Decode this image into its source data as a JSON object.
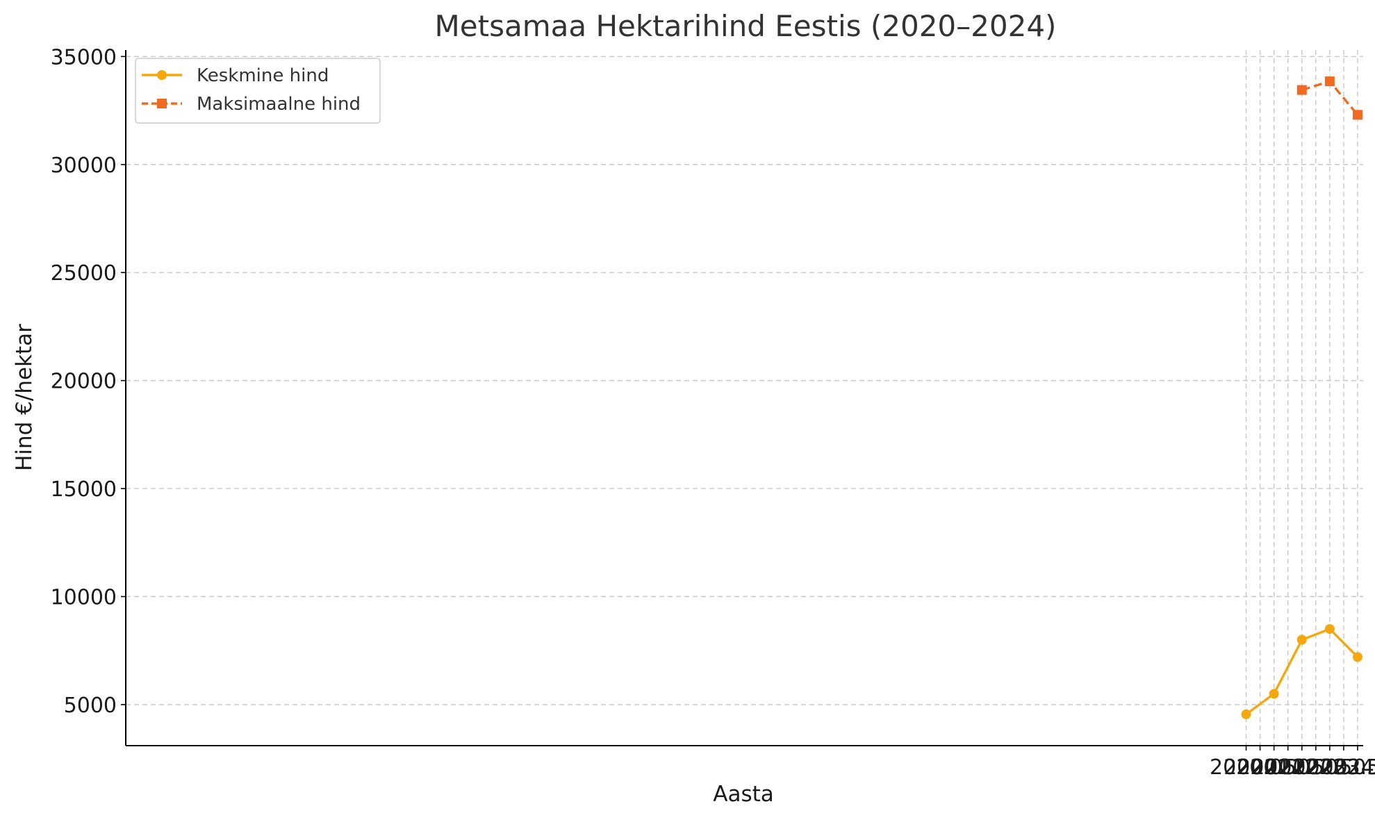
{
  "chart_data": {
    "type": "line",
    "title": "Metsamaa Hektarihind Eestis (2020–2024)",
    "xlabel": "Aasta",
    "ylabel": "Hind €/hektar",
    "xlim": [
      1979.8,
      2024.2
    ],
    "ylim": [
      3100,
      35300
    ],
    "x_ticks": [
      2020.0,
      2020.5,
      2021.0,
      2021.5,
      2022.0,
      2022.5,
      2023.0,
      2023.5,
      2024.0
    ],
    "x_tick_labels": [
      "2020.0",
      "2020.5",
      "2021.0",
      "2021.5",
      "2022.0",
      "2022.5",
      "2023.0",
      "2023.5",
      "2024.0"
    ],
    "y_ticks": [
      5000,
      10000,
      15000,
      20000,
      25000,
      30000,
      35000
    ],
    "y_tick_labels": [
      "5000",
      "10000",
      "15000",
      "20000",
      "25000",
      "30000",
      "35000"
    ],
    "grid": true,
    "legend_position": "top-left",
    "series": [
      {
        "name": "Keskmine hind",
        "color": "#f5a80e",
        "line_style": "solid",
        "marker": "circle",
        "x": [
          2020,
          2021,
          2022,
          2023,
          2024
        ],
        "values": [
          4550,
          5500,
          8000,
          8500,
          7200
        ]
      },
      {
        "name": "Maksimaalne hind",
        "color": "#f26a22",
        "line_style": "dashed",
        "marker": "square",
        "x": [
          2022,
          2023,
          2024
        ],
        "values": [
          33450,
          33850,
          32300
        ]
      }
    ]
  }
}
